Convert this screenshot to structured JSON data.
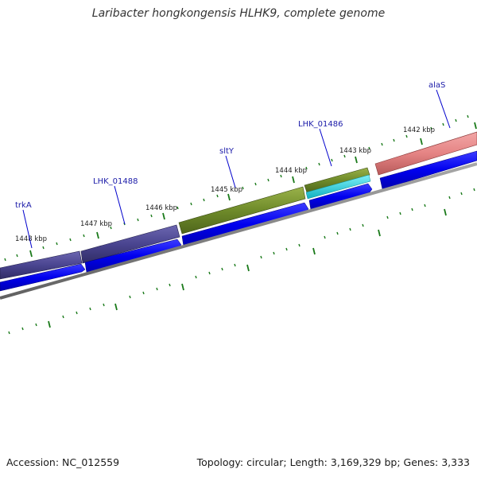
{
  "title": "Laribacter hongkongensis HLHK9, complete genome",
  "accession": "Accession: NC_012559",
  "topology": "Topology: circular; Length: 3,169,329 bp; Genes: 3,333",
  "scale_labels": [
    "1442 kbp",
    "1443 kbp",
    "1444 kbp",
    "1445 kbp",
    "1446 kbp",
    "1447 kbp",
    "1448 kbp"
  ],
  "genes": [
    {
      "name": "alaS",
      "color": "#e0797b",
      "labeled": true
    },
    {
      "name": "LHK_01486",
      "color": "#7f9a2e",
      "labeled": true
    },
    {
      "name": "sltY",
      "color": "#6a8a28",
      "labeled": true
    },
    {
      "name": "LHK_01488",
      "color": "#4a4590",
      "labeled": true
    },
    {
      "name": "trkA",
      "color": "#4a4590",
      "labeled": true
    }
  ],
  "colors": {
    "cds": "#0000ee",
    "backbone": "#808080",
    "ticks": "#1a7a1a",
    "rna": "#18c8d8"
  }
}
